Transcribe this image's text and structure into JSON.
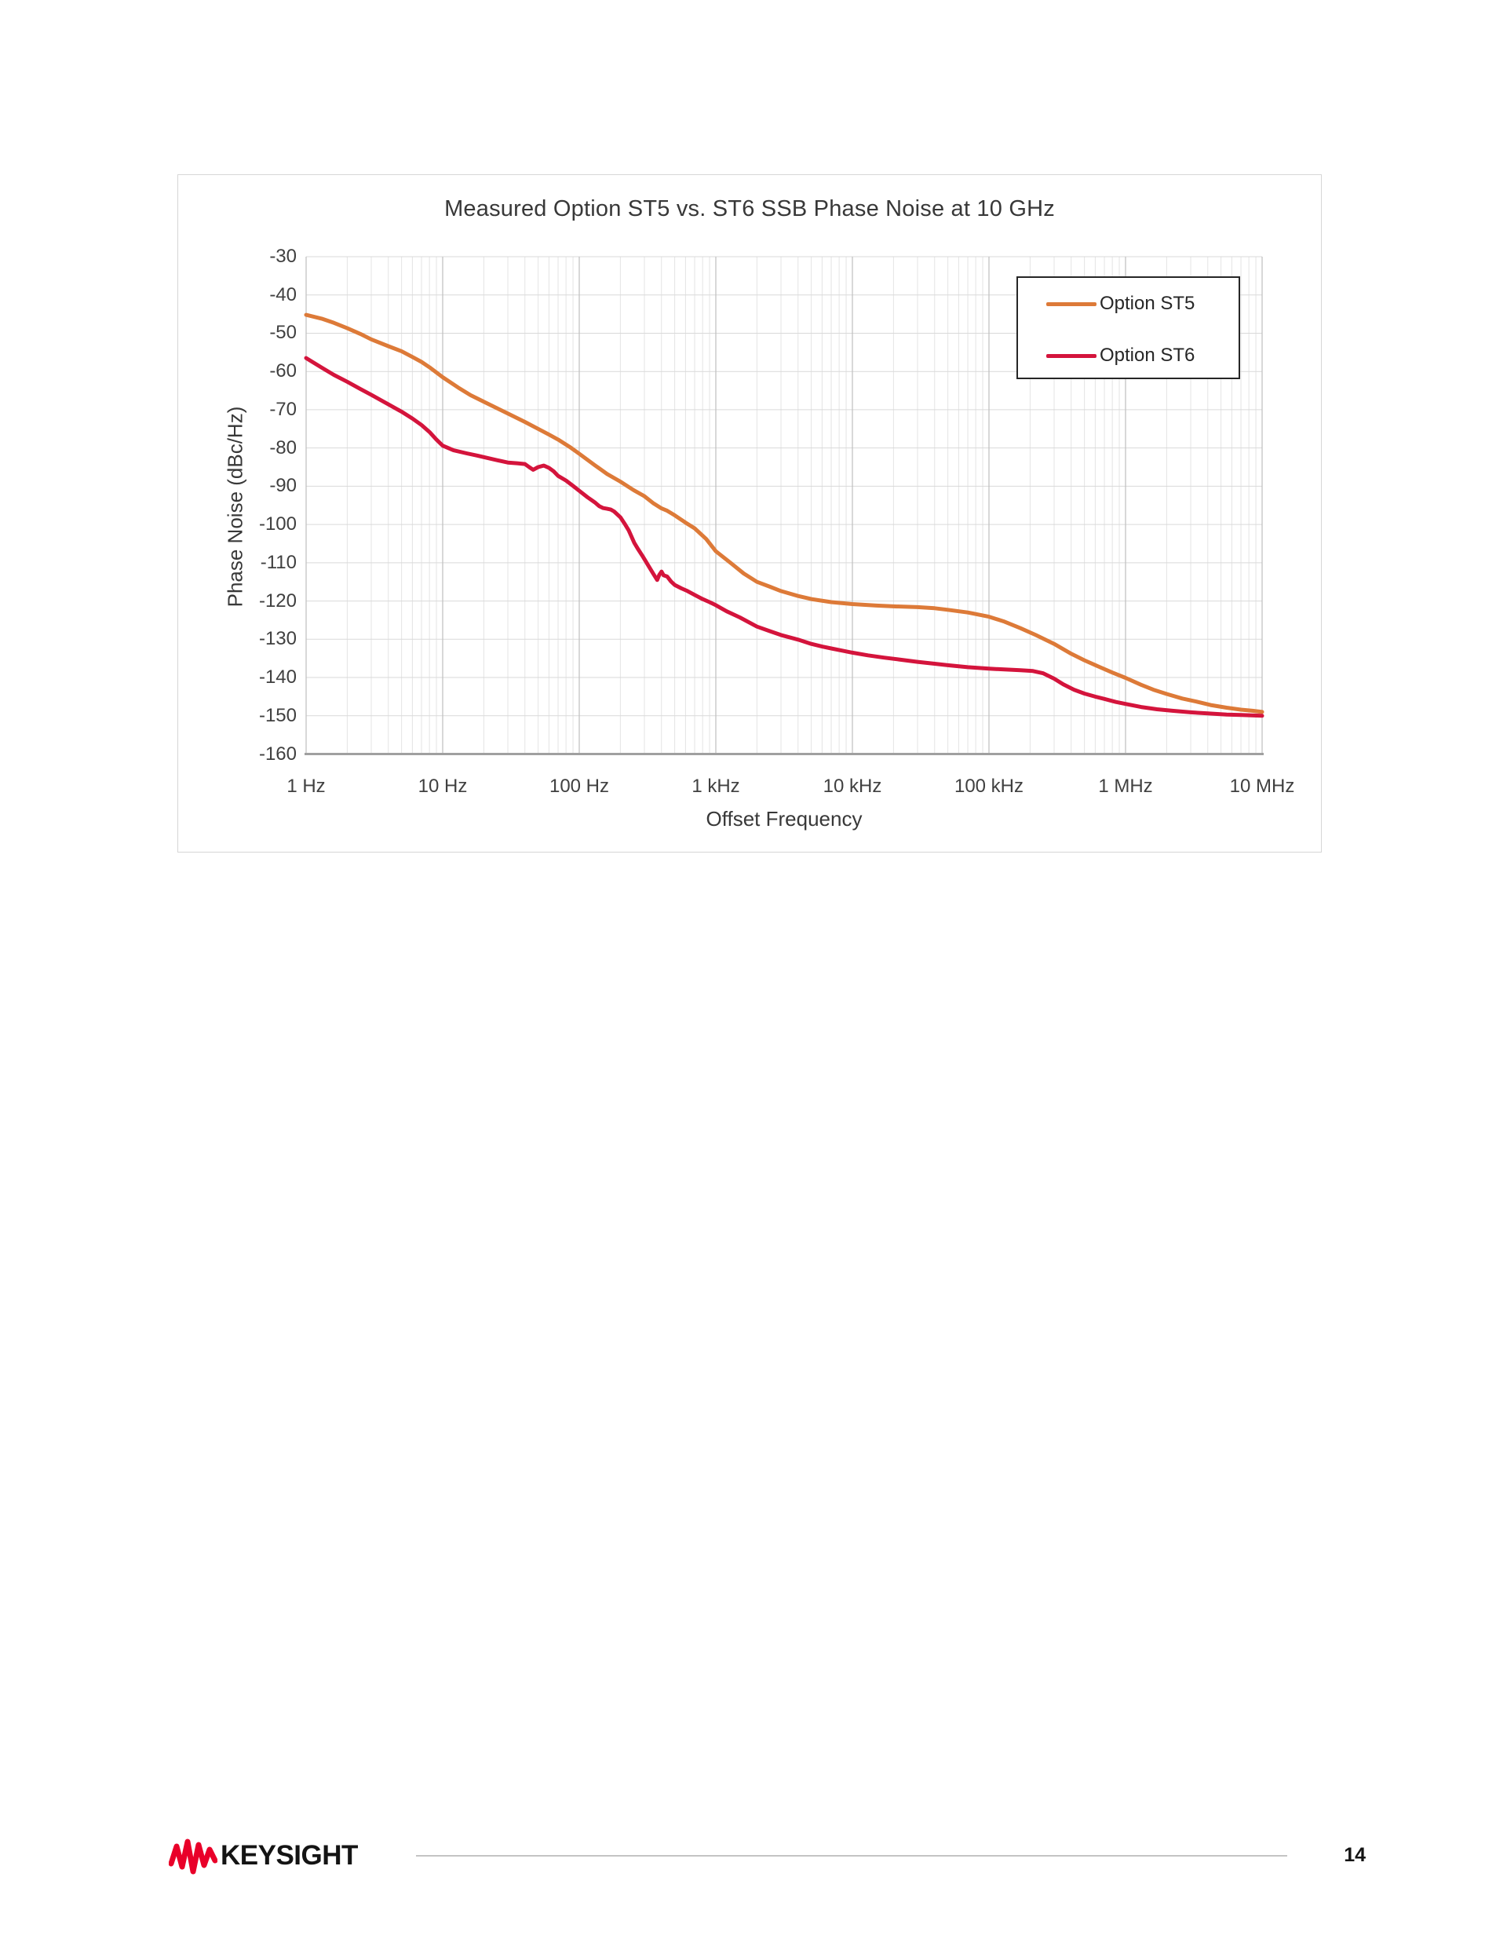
{
  "chart": {
    "title": "Measured Option ST5 vs. ST6 SSB Phase Noise at 10 GHz",
    "x_axis_title": "Offset Frequency",
    "y_axis_title": "Phase Noise (dBc/Hz)"
  },
  "footer": {
    "brand": "KEYSIGHT",
    "page_number": "14"
  },
  "chart_data": {
    "type": "line",
    "title": "Measured Option ST5 vs. ST6 SSB Phase Noise at 10 GHz",
    "xlabel": "Offset Frequency",
    "ylabel": "Phase Noise (dBc/Hz)",
    "x_scale": "log",
    "xlim": [
      1,
      10000000
    ],
    "ylim": [
      -160,
      -30
    ],
    "grid": "major-y, major+minor-x",
    "legend_position": "top-right",
    "x_ticks": [
      "1 Hz",
      "10 Hz",
      "100 Hz",
      "1 kHz",
      "10 kHz",
      "100 kHz",
      "1 MHz",
      "10 MHz"
    ],
    "x_tick_values": [
      1,
      10,
      100,
      1000,
      10000,
      100000,
      1000000,
      10000000
    ],
    "y_ticks": [
      -30,
      -40,
      -50,
      -60,
      -70,
      -80,
      -90,
      -100,
      -110,
      -120,
      -130,
      -140,
      -150,
      -160
    ],
    "colors": {
      "grid_minor": "#e4e4e4",
      "grid_major_v": "#bfbfbf",
      "grid_h": "#d9d9d9",
      "axis_line": "#a0a0a0",
      "option_st5": "#dd7a38",
      "option_st6": "#d4143c",
      "keysight_red": "#e90029"
    },
    "series": [
      {
        "name": "Option ST5",
        "color": "#dd7a38",
        "points": [
          [
            1,
            -45.2
          ],
          [
            1.3,
            -46.2
          ],
          [
            1.6,
            -47.3
          ],
          [
            2,
            -48.7
          ],
          [
            2.5,
            -50.2
          ],
          [
            3,
            -51.6
          ],
          [
            4,
            -53.4
          ],
          [
            5,
            -54.7
          ],
          [
            6,
            -56.2
          ],
          [
            7,
            -57.5
          ],
          [
            8,
            -58.9
          ],
          [
            10,
            -61.5
          ],
          [
            13,
            -64.2
          ],
          [
            16,
            -66.2
          ],
          [
            20,
            -67.9
          ],
          [
            25,
            -69.6
          ],
          [
            30,
            -71.0
          ],
          [
            40,
            -73.2
          ],
          [
            50,
            -75.0
          ],
          [
            60,
            -76.5
          ],
          [
            70,
            -77.8
          ],
          [
            85,
            -79.7
          ],
          [
            100,
            -81.5
          ],
          [
            130,
            -84.5
          ],
          [
            160,
            -86.8
          ],
          [
            200,
            -88.8
          ],
          [
            250,
            -91.0
          ],
          [
            300,
            -92.6
          ],
          [
            350,
            -94.5
          ],
          [
            400,
            -95.8
          ],
          [
            440,
            -96.4
          ],
          [
            500,
            -97.6
          ],
          [
            600,
            -99.5
          ],
          [
            700,
            -101.0
          ],
          [
            850,
            -103.8
          ],
          [
            1000,
            -107.0
          ],
          [
            1300,
            -110.2
          ],
          [
            1600,
            -112.8
          ],
          [
            2000,
            -115.0
          ],
          [
            2500,
            -116.3
          ],
          [
            3000,
            -117.4
          ],
          [
            4000,
            -118.7
          ],
          [
            5000,
            -119.5
          ],
          [
            7000,
            -120.3
          ],
          [
            10000,
            -120.8
          ],
          [
            15000,
            -121.2
          ],
          [
            20000,
            -121.4
          ],
          [
            30000,
            -121.6
          ],
          [
            40000,
            -121.9
          ],
          [
            50000,
            -122.3
          ],
          [
            70000,
            -123.0
          ],
          [
            100000,
            -124.1
          ],
          [
            130000,
            -125.4
          ],
          [
            170000,
            -127.1
          ],
          [
            220000,
            -128.9
          ],
          [
            300000,
            -131.2
          ],
          [
            400000,
            -133.8
          ],
          [
            500000,
            -135.5
          ],
          [
            650000,
            -137.3
          ],
          [
            800000,
            -138.7
          ],
          [
            1000000,
            -140.1
          ],
          [
            1300000,
            -141.9
          ],
          [
            1600000,
            -143.2
          ],
          [
            2000000,
            -144.3
          ],
          [
            2600000,
            -145.5
          ],
          [
            3300000,
            -146.3
          ],
          [
            4200000,
            -147.2
          ],
          [
            5500000,
            -147.9
          ],
          [
            7000000,
            -148.4
          ],
          [
            8500000,
            -148.7
          ],
          [
            10000000,
            -149.0
          ]
        ]
      },
      {
        "name": "Option ST6",
        "color": "#d4143c",
        "points": [
          [
            1,
            -56.5
          ],
          [
            1.3,
            -59.0
          ],
          [
            1.6,
            -60.9
          ],
          [
            2,
            -62.7
          ],
          [
            2.5,
            -64.6
          ],
          [
            3,
            -66.1
          ],
          [
            4,
            -68.6
          ],
          [
            5,
            -70.5
          ],
          [
            6,
            -72.3
          ],
          [
            7,
            -74.0
          ],
          [
            8,
            -75.8
          ],
          [
            9,
            -77.8
          ],
          [
            10,
            -79.4
          ],
          [
            12,
            -80.6
          ],
          [
            15,
            -81.4
          ],
          [
            18,
            -82.0
          ],
          [
            20,
            -82.4
          ],
          [
            25,
            -83.2
          ],
          [
            30,
            -83.8
          ],
          [
            35,
            -84.0
          ],
          [
            40,
            -84.2
          ],
          [
            43,
            -85.0
          ],
          [
            46,
            -85.7
          ],
          [
            50,
            -85.0
          ],
          [
            55,
            -84.6
          ],
          [
            60,
            -85.2
          ],
          [
            65,
            -86.1
          ],
          [
            70,
            -87.3
          ],
          [
            80,
            -88.5
          ],
          [
            90,
            -89.9
          ],
          [
            100,
            -91.2
          ],
          [
            115,
            -92.9
          ],
          [
            130,
            -94.2
          ],
          [
            140,
            -95.2
          ],
          [
            150,
            -95.7
          ],
          [
            160,
            -95.9
          ],
          [
            170,
            -96.1
          ],
          [
            180,
            -96.6
          ],
          [
            200,
            -98.1
          ],
          [
            215,
            -99.8
          ],
          [
            230,
            -101.5
          ],
          [
            253,
            -104.8
          ],
          [
            270,
            -106.5
          ],
          [
            290,
            -108.2
          ],
          [
            320,
            -110.7
          ],
          [
            350,
            -113.0
          ],
          [
            372,
            -114.5
          ],
          [
            385,
            -113.2
          ],
          [
            400,
            -112.3
          ],
          [
            415,
            -113.3
          ],
          [
            440,
            -113.6
          ],
          [
            470,
            -114.9
          ],
          [
            500,
            -115.8
          ],
          [
            560,
            -116.7
          ],
          [
            620,
            -117.4
          ],
          [
            700,
            -118.4
          ],
          [
            800,
            -119.5
          ],
          [
            900,
            -120.3
          ],
          [
            1000,
            -121.1
          ],
          [
            1200,
            -122.7
          ],
          [
            1500,
            -124.3
          ],
          [
            2000,
            -126.7
          ],
          [
            2500,
            -127.9
          ],
          [
            3000,
            -128.9
          ],
          [
            4000,
            -130.1
          ],
          [
            5000,
            -131.2
          ],
          [
            6000,
            -131.9
          ],
          [
            7000,
            -132.4
          ],
          [
            8500,
            -133.0
          ],
          [
            10000,
            -133.5
          ],
          [
            13000,
            -134.2
          ],
          [
            17000,
            -134.8
          ],
          [
            22000,
            -135.3
          ],
          [
            30000,
            -135.9
          ],
          [
            40000,
            -136.4
          ],
          [
            50000,
            -136.8
          ],
          [
            70000,
            -137.3
          ],
          [
            100000,
            -137.7
          ],
          [
            130000,
            -137.9
          ],
          [
            170000,
            -138.1
          ],
          [
            210000,
            -138.3
          ],
          [
            250000,
            -138.9
          ],
          [
            300000,
            -140.3
          ],
          [
            350000,
            -141.8
          ],
          [
            420000,
            -143.2
          ],
          [
            500000,
            -144.2
          ],
          [
            600000,
            -145.0
          ],
          [
            700000,
            -145.6
          ],
          [
            850000,
            -146.4
          ],
          [
            1000000,
            -146.9
          ],
          [
            1300000,
            -147.7
          ],
          [
            1700000,
            -148.3
          ],
          [
            2200000,
            -148.7
          ],
          [
            3000000,
            -149.1
          ],
          [
            4000000,
            -149.4
          ],
          [
            5500000,
            -149.7
          ],
          [
            7000000,
            -149.8
          ],
          [
            10000000,
            -150.0
          ]
        ]
      }
    ]
  }
}
